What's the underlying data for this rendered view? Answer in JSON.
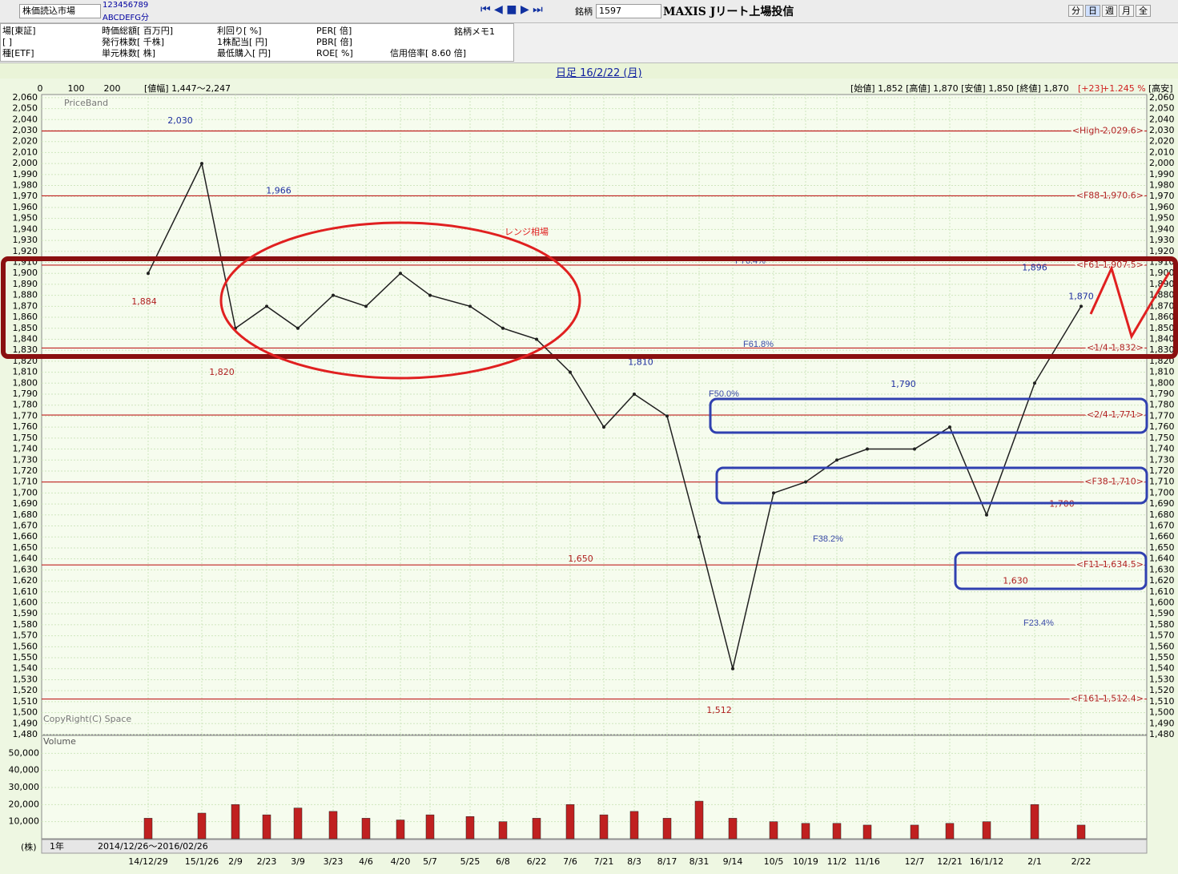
{
  "toolbar": {
    "market": "株価読込市場",
    "digits": "123456789",
    "letters": "ABCDEFG分",
    "code_label": "銘柄",
    "code": "1597",
    "name": "MAXIS Jリート上場投信",
    "periods": [
      "分",
      "日",
      "週",
      "月",
      "全"
    ]
  },
  "info_panel": {
    "col1": [
      "場[東証]",
      "[ ]",
      "種[ETF]"
    ],
    "col2": [
      "時価総額[ 百万円]",
      "発行株数[ 千株]",
      "単元株数[ 株]"
    ],
    "col3": [
      "利回り[ %]",
      "1株配当[ 円]",
      "最低購入[ 円]"
    ],
    "col4": [
      "PER[ 倍]",
      "PBR[ 倍]",
      "ROE[ %]"
    ],
    "memo": "銘柄メモ1",
    "margin_ratio": "信用倍率[ 8.60 倍]"
  },
  "chart_data": {
    "type": "line",
    "title": "日足 16/2/22 (月)",
    "price_band": {
      "label": "PriceBand",
      "ticks": [
        0,
        100,
        200
      ],
      "range": "[値幅] 1,447～2,247"
    },
    "ohlc_text": "[始値] 1,852 [高値] 1,870 [安値] 1,850 [終値] 1,870",
    "change": "[+23]",
    "change_pct": "+1.245 %",
    "right_header": "[高安]",
    "copyright": "CopyRight(C) Space",
    "categories": [
      "14/12/29",
      "15/1/26",
      "2/9",
      "2/23",
      "3/9",
      "3/23",
      "4/6",
      "4/20",
      "5/7",
      "5/25",
      "6/8",
      "6/22",
      "7/6",
      "7/21",
      "8/3",
      "8/17",
      "8/31",
      "9/14",
      "10/5",
      "10/19",
      "11/2",
      "11/16",
      "12/7",
      "12/21",
      "16/1/12",
      "2/1",
      "2/22"
    ],
    "series": [
      {
        "name": "終値",
        "color": "#202020",
        "values": [
          1900,
          2000,
          1850,
          1870,
          1850,
          1880,
          1870,
          1900,
          1880,
          1870,
          1850,
          1840,
          1810,
          1760,
          1790,
          1770,
          1660,
          1540,
          1700,
          1710,
          1730,
          1740,
          1740,
          1760,
          1680,
          1800,
          1870
        ]
      }
    ],
    "ylim": [
      1480,
      2065
    ],
    "yticks": [
      {
        "value": 1480,
        "label": "1,480"
      },
      {
        "value": 1490,
        "label": "1,490"
      },
      {
        "value": 1500,
        "label": "1,500"
      },
      {
        "value": 1510,
        "label": "1,510"
      },
      {
        "value": 1520,
        "label": "1,520"
      },
      {
        "value": 1530,
        "label": "1,530"
      },
      {
        "value": 1540,
        "label": "1,540"
      },
      {
        "value": 1550,
        "label": "1,550"
      },
      {
        "value": 1560,
        "label": "1,560"
      },
      {
        "value": 1570,
        "label": "1,570"
      },
      {
        "value": 1580,
        "label": "1,580"
      },
      {
        "value": 1590,
        "label": "1,590"
      },
      {
        "value": 1600,
        "label": "1,600"
      },
      {
        "value": 1610,
        "label": "1,610"
      },
      {
        "value": 1620,
        "label": "1,620"
      },
      {
        "value": 1630,
        "label": "1,630"
      },
      {
        "value": 1640,
        "label": "1,640"
      },
      {
        "value": 1650,
        "label": "1,650"
      },
      {
        "value": 1660,
        "label": "1,660"
      },
      {
        "value": 1670,
        "label": "1,670"
      },
      {
        "value": 1680,
        "label": "1,680"
      },
      {
        "value": 1690,
        "label": "1,690"
      },
      {
        "value": 1700,
        "label": "1,700"
      },
      {
        "value": 1710,
        "label": "1,710"
      },
      {
        "value": 1720,
        "label": "1,720"
      },
      {
        "value": 1730,
        "label": "1,730"
      },
      {
        "value": 1740,
        "label": "1,740"
      },
      {
        "value": 1750,
        "label": "1,750"
      },
      {
        "value": 1760,
        "label": "1,760"
      },
      {
        "value": 1770,
        "label": "1,770"
      },
      {
        "value": 1780,
        "label": "1,780"
      },
      {
        "value": 1790,
        "label": "1,790"
      },
      {
        "value": 1800,
        "label": "1,800"
      },
      {
        "value": 1810,
        "label": "1,810"
      },
      {
        "value": 1820,
        "label": "1,820"
      },
      {
        "value": 1830,
        "label": "1,830"
      },
      {
        "value": 1840,
        "label": "1,840"
      },
      {
        "value": 1850,
        "label": "1,850"
      },
      {
        "value": 1860,
        "label": "1,860"
      },
      {
        "value": 1870,
        "label": "1,870"
      },
      {
        "value": 1880,
        "label": "1,880"
      },
      {
        "value": 1890,
        "label": "1,890"
      },
      {
        "value": 1900,
        "label": "1,900"
      },
      {
        "value": 1910,
        "label": "1,910"
      },
      {
        "value": 1920,
        "label": "1,920"
      },
      {
        "value": 1930,
        "label": "1,930"
      },
      {
        "value": 1940,
        "label": "1,940"
      },
      {
        "value": 1950,
        "label": "1,950"
      },
      {
        "value": 1960,
        "label": "1,960"
      },
      {
        "value": 1970,
        "label": "1,970"
      },
      {
        "value": 1980,
        "label": "1,980"
      },
      {
        "value": 1990,
        "label": "1,990"
      },
      {
        "value": 2000,
        "label": "2,000"
      },
      {
        "value": 2010,
        "label": "2,010"
      },
      {
        "value": 2020,
        "label": "2,020"
      },
      {
        "value": 2030,
        "label": "2,030"
      },
      {
        "value": 2040,
        "label": "2,040"
      },
      {
        "value": 2050,
        "label": "2,050"
      },
      {
        "value": 2060,
        "label": "2,060"
      }
    ],
    "grid": true,
    "reference_lines": [
      {
        "label": "<High 2,029.6>",
        "value": 2029.6
      },
      {
        "label": "<F88 1,970.6>",
        "value": 1970.6
      },
      {
        "label": "<F61 1,907.5>",
        "value": 1907.5
      },
      {
        "label": "<1/4 1,832>",
        "value": 1832
      },
      {
        "label": "<2/4 1,771>",
        "value": 1771
      },
      {
        "label": "<F38 1,710>",
        "value": 1710
      },
      {
        "label": "<F11 1,634.5>",
        "value": 1634.5
      },
      {
        "label": "<F161 1,512.4>",
        "value": 1512.4
      }
    ],
    "point_labels": [
      {
        "value": 2030,
        "label": "2,030"
      },
      {
        "value": 1966,
        "label": "1,966"
      },
      {
        "value": 1884,
        "label": "1,884"
      },
      {
        "value": 1820,
        "label": "1,820"
      },
      {
        "value": 1810,
        "label": "1,810"
      },
      {
        "value": 1650,
        "label": "1,650"
      },
      {
        "value": 1512,
        "label": "1,512"
      },
      {
        "value": 1790,
        "label": "1,790"
      },
      {
        "value": 1630,
        "label": "1,630"
      },
      {
        "value": 1896,
        "label": "1,896"
      },
      {
        "value": 1870,
        "label": "1,870"
      },
      {
        "value": 1700,
        "label": "1,700"
      }
    ],
    "annotations": [
      "レンジ相場",
      "F76.4%",
      "F61.8%",
      "F50.0%",
      "F38.2%",
      "F23.4%"
    ],
    "volume": {
      "label": "Volume",
      "unit": "(株)",
      "color": "#c02020",
      "values": [
        12000,
        15000,
        20000,
        14000,
        18000,
        16000,
        12000,
        11000,
        14000,
        13000,
        10000,
        12000,
        20000,
        14000,
        16000,
        12000,
        22000,
        12000,
        10000,
        9000,
        9000,
        8000,
        8000,
        9000,
        10000,
        20000,
        8000
      ],
      "ylim": [
        0,
        60000
      ],
      "yticks": [
        {
          "value": 10000,
          "label": "10,000"
        },
        {
          "value": 20000,
          "label": "20,000"
        },
        {
          "value": 30000,
          "label": "30,000"
        },
        {
          "value": 40000,
          "label": "40,000"
        },
        {
          "value": 50000,
          "label": "50,000"
        }
      ]
    }
  },
  "footer": {
    "span": "1年",
    "range": "2014/12/26～2016/02/26"
  }
}
